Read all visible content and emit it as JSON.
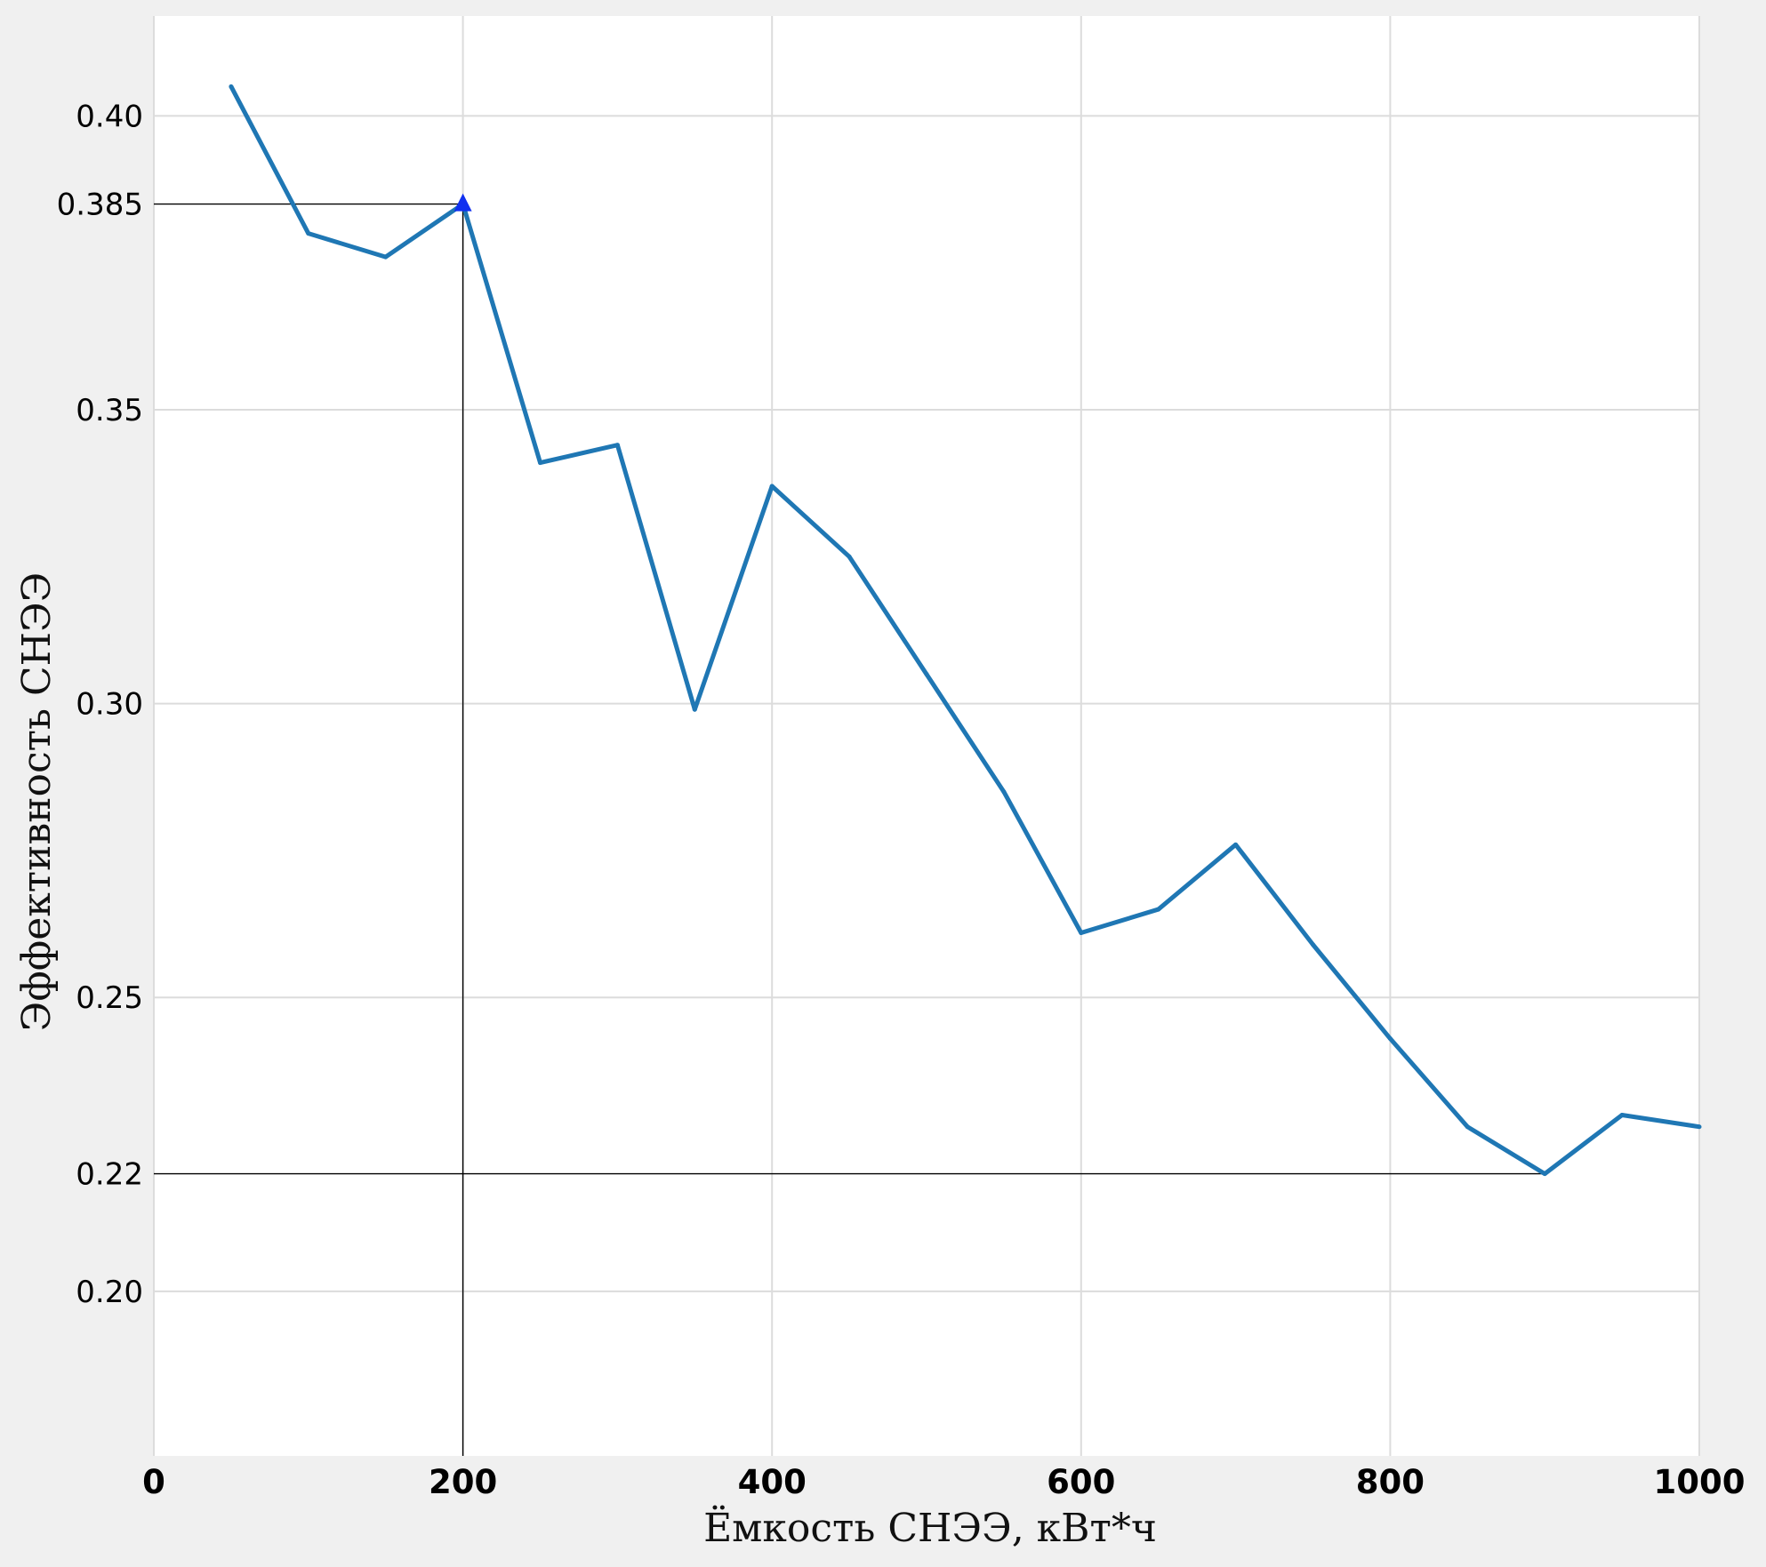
{
  "chart_data": {
    "type": "line",
    "xlabel": "Ёмкость СНЭЭ, кВт*ч",
    "ylabel": "Эффективность СНЭЭ",
    "xlim": [
      0,
      1000
    ],
    "ylim": [
      0.172,
      0.417
    ],
    "xticks": [
      0,
      200,
      400,
      600,
      800,
      1000
    ],
    "xtick_labels": [
      "0",
      "200",
      "400",
      "600",
      "800",
      "1000"
    ],
    "yticks": [
      0.2,
      0.22,
      0.25,
      0.3,
      0.35,
      0.385,
      0.4
    ],
    "ytick_labels": [
      "0.20",
      "0.22",
      "0.25",
      "0.30",
      "0.35",
      "0.385",
      "0.40"
    ],
    "grid": true,
    "series": [
      {
        "x": [
          50,
          100,
          150,
          200,
          250,
          300,
          350,
          400,
          450,
          500,
          550,
          600,
          650,
          700,
          750,
          800,
          850,
          900,
          950,
          1000
        ],
        "values": [
          0.405,
          0.38,
          0.376,
          0.385,
          0.341,
          0.344,
          0.299,
          0.337,
          0.325,
          0.305,
          0.285,
          0.261,
          0.265,
          0.276,
          0.259,
          0.243,
          0.228,
          0.22,
          0.23,
          0.228
        ]
      }
    ],
    "marker": {
      "x": 200,
      "y": 0.385,
      "shape": "triangle"
    },
    "reference_lines": [
      {
        "from": [
          0,
          0.385
        ],
        "corner": [
          200,
          0.385
        ],
        "to": [
          200,
          0.172
        ]
      },
      {
        "from": [
          0,
          0.22
        ],
        "to": [
          900,
          0.22
        ]
      }
    ],
    "colors": {
      "line": "#1f77b4",
      "marker": "#1030f0",
      "grid": "#dcdcdc",
      "plot_bg": "#ffffff",
      "figure_bg": "#f0f0f0"
    }
  }
}
